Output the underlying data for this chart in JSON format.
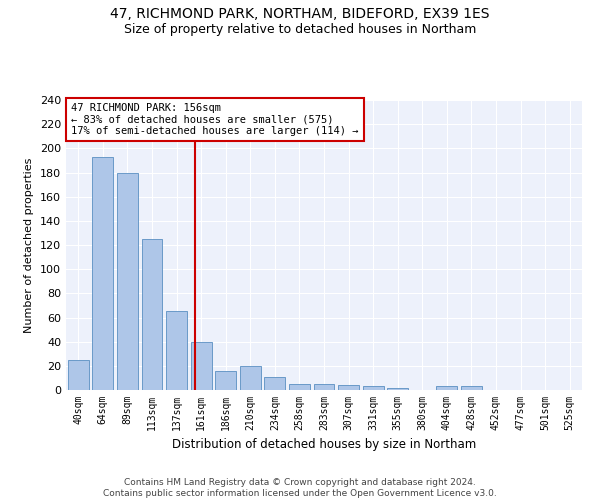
{
  "title1": "47, RICHMOND PARK, NORTHAM, BIDEFORD, EX39 1ES",
  "title2": "Size of property relative to detached houses in Northam",
  "xlabel": "Distribution of detached houses by size in Northam",
  "ylabel": "Number of detached properties",
  "bar_labels": [
    "40sqm",
    "64sqm",
    "89sqm",
    "113sqm",
    "137sqm",
    "161sqm",
    "186sqm",
    "210sqm",
    "234sqm",
    "258sqm",
    "283sqm",
    "307sqm",
    "331sqm",
    "355sqm",
    "380sqm",
    "404sqm",
    "428sqm",
    "452sqm",
    "477sqm",
    "501sqm",
    "525sqm"
  ],
  "bar_values": [
    25,
    193,
    180,
    125,
    65,
    40,
    16,
    20,
    11,
    5,
    5,
    4,
    3,
    2,
    0,
    3,
    3,
    0,
    0,
    0,
    0
  ],
  "bar_color": "#aec6e8",
  "bar_edgecolor": "#5a8fc2",
  "annotation_line1": "47 RICHMOND PARK: 156sqm",
  "annotation_line2": "← 83% of detached houses are smaller (575)",
  "annotation_line3": "17% of semi-detached houses are larger (114) →",
  "vline_color": "#cc0000",
  "vline_x_index": 4.75,
  "annotation_box_color": "#cc0000",
  "ylim": [
    0,
    240
  ],
  "yticks": [
    0,
    20,
    40,
    60,
    80,
    100,
    120,
    140,
    160,
    180,
    200,
    220,
    240
  ],
  "footer_line1": "Contains HM Land Registry data © Crown copyright and database right 2024.",
  "footer_line2": "Contains public sector information licensed under the Open Government Licence v3.0.",
  "bg_color": "#edf1fb"
}
